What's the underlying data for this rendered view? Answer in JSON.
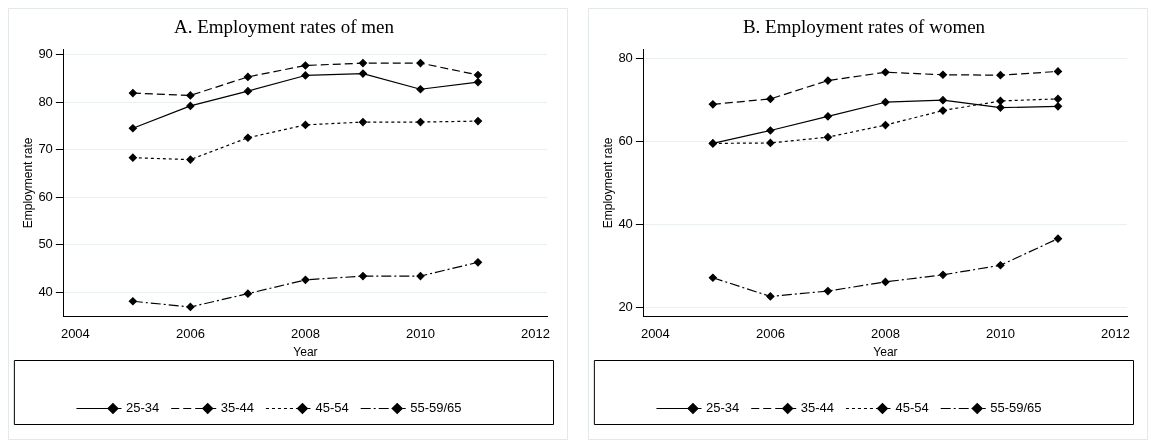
{
  "chart_data": [
    {
      "type": "line",
      "title": "A. Employment rates of men",
      "xlabel": "Year",
      "ylabel": "Employment rate",
      "x": [
        2005,
        2006,
        2007,
        2008,
        2009,
        2010,
        2011
      ],
      "xlim": [
        2003.8,
        2012.2
      ],
      "xticks": [
        2004,
        2006,
        2008,
        2010,
        2012
      ],
      "ylim": [
        35,
        91
      ],
      "yticks": [
        40,
        50,
        60,
        70,
        80,
        90
      ],
      "grid": "y",
      "legend": "bottom",
      "marker": "diamond",
      "series": [
        {
          "name": "25-34",
          "color": "#000000",
          "line_style": "solid",
          "values": [
            74.5,
            79.2,
            82.3,
            85.6,
            86.0,
            82.7,
            84.2
          ]
        },
        {
          "name": "35-44",
          "color": "#000000",
          "line_style": "dashed",
          "values": [
            81.9,
            81.4,
            85.3,
            87.7,
            88.2,
            88.2,
            85.7
          ]
        },
        {
          "name": "45-54",
          "color": "#000000",
          "line_style": "dotted",
          "values": [
            68.3,
            67.9,
            72.5,
            75.2,
            75.8,
            75.8,
            76.0
          ]
        },
        {
          "name": "55-59/65",
          "color": "#000000",
          "line_style": "dashdot",
          "values": [
            38.1,
            36.9,
            39.7,
            42.6,
            43.4,
            43.4,
            46.3
          ]
        }
      ]
    },
    {
      "type": "line",
      "title": "B. Employment rates of women",
      "xlabel": "Year",
      "ylabel": "Employment rate",
      "x": [
        2005,
        2006,
        2007,
        2008,
        2009,
        2010,
        2011
      ],
      "xlim": [
        2003.8,
        2012.2
      ],
      "xticks": [
        2004,
        2006,
        2008,
        2010,
        2012
      ],
      "ylim": [
        18,
        82
      ],
      "yticks": [
        20,
        40,
        60,
        80
      ],
      "grid": "y",
      "legend": "bottom",
      "marker": "diamond",
      "series": [
        {
          "name": "25-34",
          "color": "#000000",
          "line_style": "solid",
          "values": [
            59.5,
            62.6,
            66.0,
            69.4,
            69.9,
            68.1,
            68.4
          ]
        },
        {
          "name": "35-44",
          "color": "#000000",
          "line_style": "dashed",
          "values": [
            68.9,
            70.2,
            74.6,
            76.6,
            76.0,
            75.9,
            76.8
          ]
        },
        {
          "name": "45-54",
          "color": "#000000",
          "line_style": "dotted",
          "values": [
            59.5,
            59.6,
            61.0,
            63.9,
            67.4,
            69.7,
            70.2
          ]
        },
        {
          "name": "55-59/65",
          "color": "#000000",
          "line_style": "dashdot",
          "values": [
            27.2,
            22.7,
            24.0,
            26.2,
            27.9,
            30.2,
            36.6
          ]
        }
      ]
    }
  ]
}
